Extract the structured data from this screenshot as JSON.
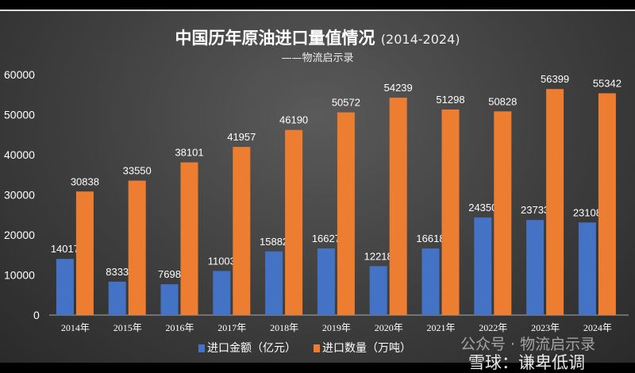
{
  "chart_data": {
    "type": "bar",
    "title": "中国历年原油进口量值情况",
    "title_years": "(2014-2024)",
    "subtitle": "——物流启示录",
    "categories": [
      "2014年",
      "2015年",
      "2016年",
      "2017年",
      "2018年",
      "2019年",
      "2020年",
      "2021年",
      "2022年",
      "2023年",
      "2024年"
    ],
    "series": [
      {
        "name": "进口金额（亿元）",
        "color": "#4472c4",
        "values": [
          14017,
          8333,
          7698,
          11003,
          15882,
          16627,
          12218,
          16618,
          24350,
          23733,
          23108
        ]
      },
      {
        "name": "进口数量（万吨）",
        "color": "#ed7d31",
        "values": [
          30838,
          33550,
          38101,
          41957,
          46190,
          50572,
          54239,
          51298,
          50828,
          56399,
          55342
        ]
      }
    ],
    "ylim": [
      0,
      60000
    ],
    "yticks": [
      0,
      10000,
      20000,
      30000,
      40000,
      50000,
      60000
    ],
    "grid": false,
    "legend": "bottom"
  },
  "watermarks": {
    "wechat": "公众号 · 物流启示录",
    "xueqiu": "雪球：谦卑低调"
  }
}
